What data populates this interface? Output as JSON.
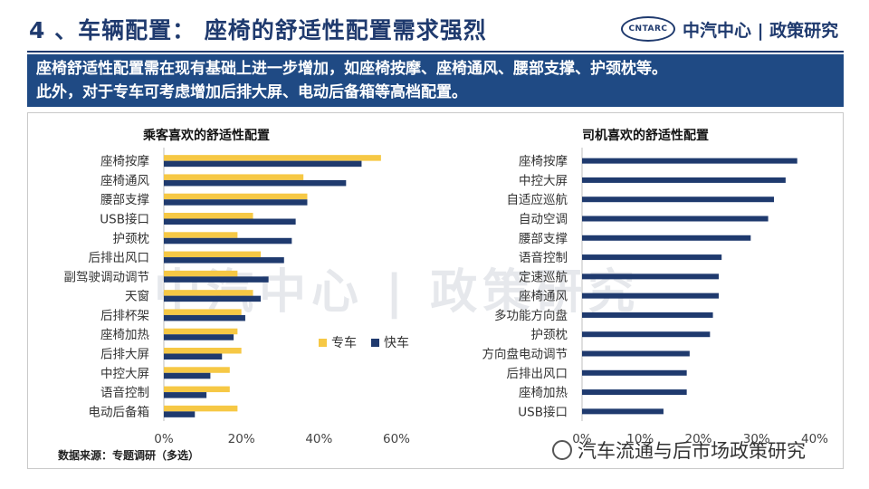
{
  "header": {
    "title": "4 、车辆配置： 座椅的舒适性配置需求强烈",
    "logo_mark": "CNTARC",
    "logo_text": "中汽中心 | 政策研究"
  },
  "banner": {
    "line1": "座椅舒适性配置需在现有基础上进一步增加，如座椅按摩、座椅通风、腰部支撑、护颈枕等。",
    "line2": "此外，对于专车可考虑增加后排大屏、电动后备箱等高档配置。"
  },
  "watermark": "中汽中心 | 政策研究",
  "source": "数据来源：专题调研（多选）",
  "wechat": "汽车流通与后市场政策研究",
  "colors": {
    "accent": "#1f3a6e",
    "banner": "#1f4a84",
    "zhuanche": "#f6c845",
    "kuaiche": "#1f3a6e"
  },
  "chart_data": [
    {
      "type": "bar",
      "orientation": "horizontal",
      "title": "乘客喜欢的舒适性配置",
      "categories": [
        "座椅按摩",
        "座椅通风",
        "腰部支撑",
        "USB接口",
        "护颈枕",
        "后排出风口",
        "副驾驶调动调节",
        "天窗",
        "后排杯架",
        "座椅加热",
        "后排大屏",
        "中控大屏",
        "语音控制",
        "电动后备箱"
      ],
      "series": [
        {
          "name": "专车",
          "color": "#f6c845",
          "values": [
            56,
            36,
            37,
            23,
            19,
            25,
            19,
            23,
            20,
            19,
            20,
            17,
            17,
            19
          ]
        },
        {
          "name": "快车",
          "color": "#1f3a6e",
          "values": [
            51,
            47,
            37,
            34,
            33,
            31,
            27,
            25,
            21,
            18,
            15,
            12,
            11,
            8
          ]
        }
      ],
      "xlim": [
        0,
        60
      ],
      "ticks": [
        "0%",
        "20%",
        "40%",
        "60%"
      ],
      "legend": {
        "position": "right",
        "labels": [
          "专车",
          "快车"
        ]
      }
    },
    {
      "type": "bar",
      "orientation": "horizontal",
      "title": "司机喜欢的舒适性配置",
      "categories": [
        "座椅按摩",
        "中控大屏",
        "自适应巡航",
        "自动空调",
        "腰部支撑",
        "语音控制",
        "定速巡航",
        "座椅通风",
        "多功能方向盘",
        "护颈枕",
        "方向盘电动调节",
        "后排出风口",
        "座椅加热",
        "USB接口"
      ],
      "series": [
        {
          "name": "司机",
          "color": "#1f3a6e",
          "values": [
            37,
            35,
            33,
            32,
            29,
            24,
            23.5,
            23.5,
            22.5,
            22,
            18.5,
            18,
            18,
            14
          ]
        }
      ],
      "xlim": [
        0,
        40
      ],
      "ticks": [
        "0%",
        "10%",
        "20%",
        "30%",
        "40%"
      ]
    }
  ]
}
